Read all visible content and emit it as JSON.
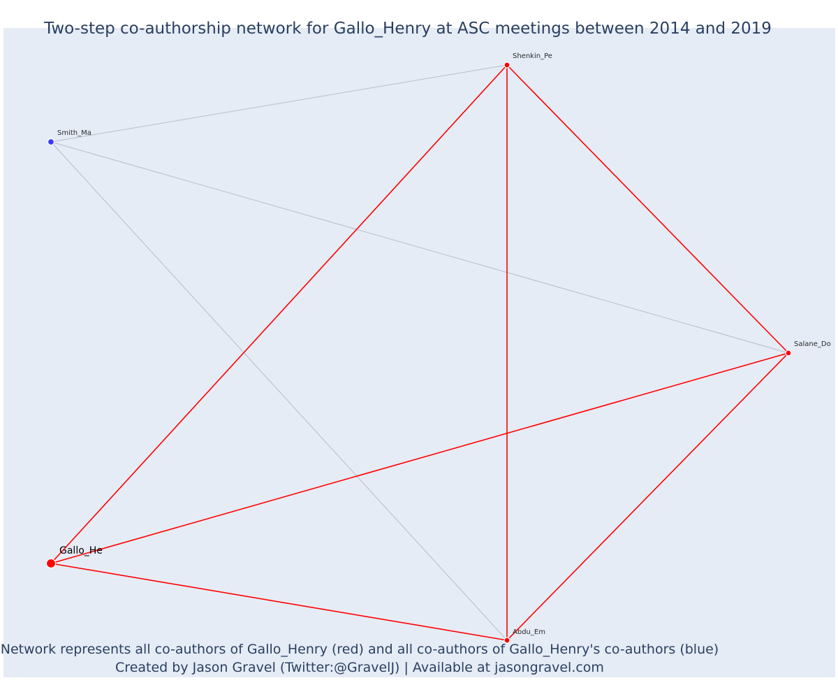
{
  "title": "Two-step co-authorship network for Gallo_Henry at ASC meetings between 2014 and 2019",
  "caption_line1": "Network represents all co-authors of Gallo_Henry (red) and all co-authors of Gallo_Henry's co-authors (blue)",
  "caption_line2": "Created by Jason Gravel (Twitter:@GravelJ) | Available at jasongravel.com",
  "colors": {
    "plot_background": "#e5ecf6",
    "first_step": "#ff0000",
    "second_step": "#3b3bff",
    "second_step_edge": "#b8bccb",
    "text": "#2a3f5f"
  },
  "nodes": [
    {
      "id": "Gallo_He",
      "label": "Gallo_He",
      "group": "focal"
    },
    {
      "id": "Shenkin_Pe",
      "label": "Shenkin_Pe",
      "group": "co-author"
    },
    {
      "id": "Salane_Do",
      "label": "Salane_Do",
      "group": "co-author"
    },
    {
      "id": "Abdu_Em",
      "label": "Abdu_Em",
      "group": "co-author"
    },
    {
      "id": "Smith_Ma",
      "label": "Smith_Ma",
      "group": "second-step"
    }
  ],
  "edges": [
    {
      "source": "Gallo_He",
      "target": "Shenkin_Pe",
      "type": "first"
    },
    {
      "source": "Gallo_He",
      "target": "Salane_Do",
      "type": "first"
    },
    {
      "source": "Gallo_He",
      "target": "Abdu_Em",
      "type": "first"
    },
    {
      "source": "Shenkin_Pe",
      "target": "Salane_Do",
      "type": "first"
    },
    {
      "source": "Shenkin_Pe",
      "target": "Abdu_Em",
      "type": "first"
    },
    {
      "source": "Salane_Do",
      "target": "Abdu_Em",
      "type": "first"
    },
    {
      "source": "Smith_Ma",
      "target": "Shenkin_Pe",
      "type": "second"
    },
    {
      "source": "Smith_Ma",
      "target": "Salane_Do",
      "type": "second"
    },
    {
      "source": "Smith_Ma",
      "target": "Abdu_Em",
      "type": "second"
    }
  ]
}
